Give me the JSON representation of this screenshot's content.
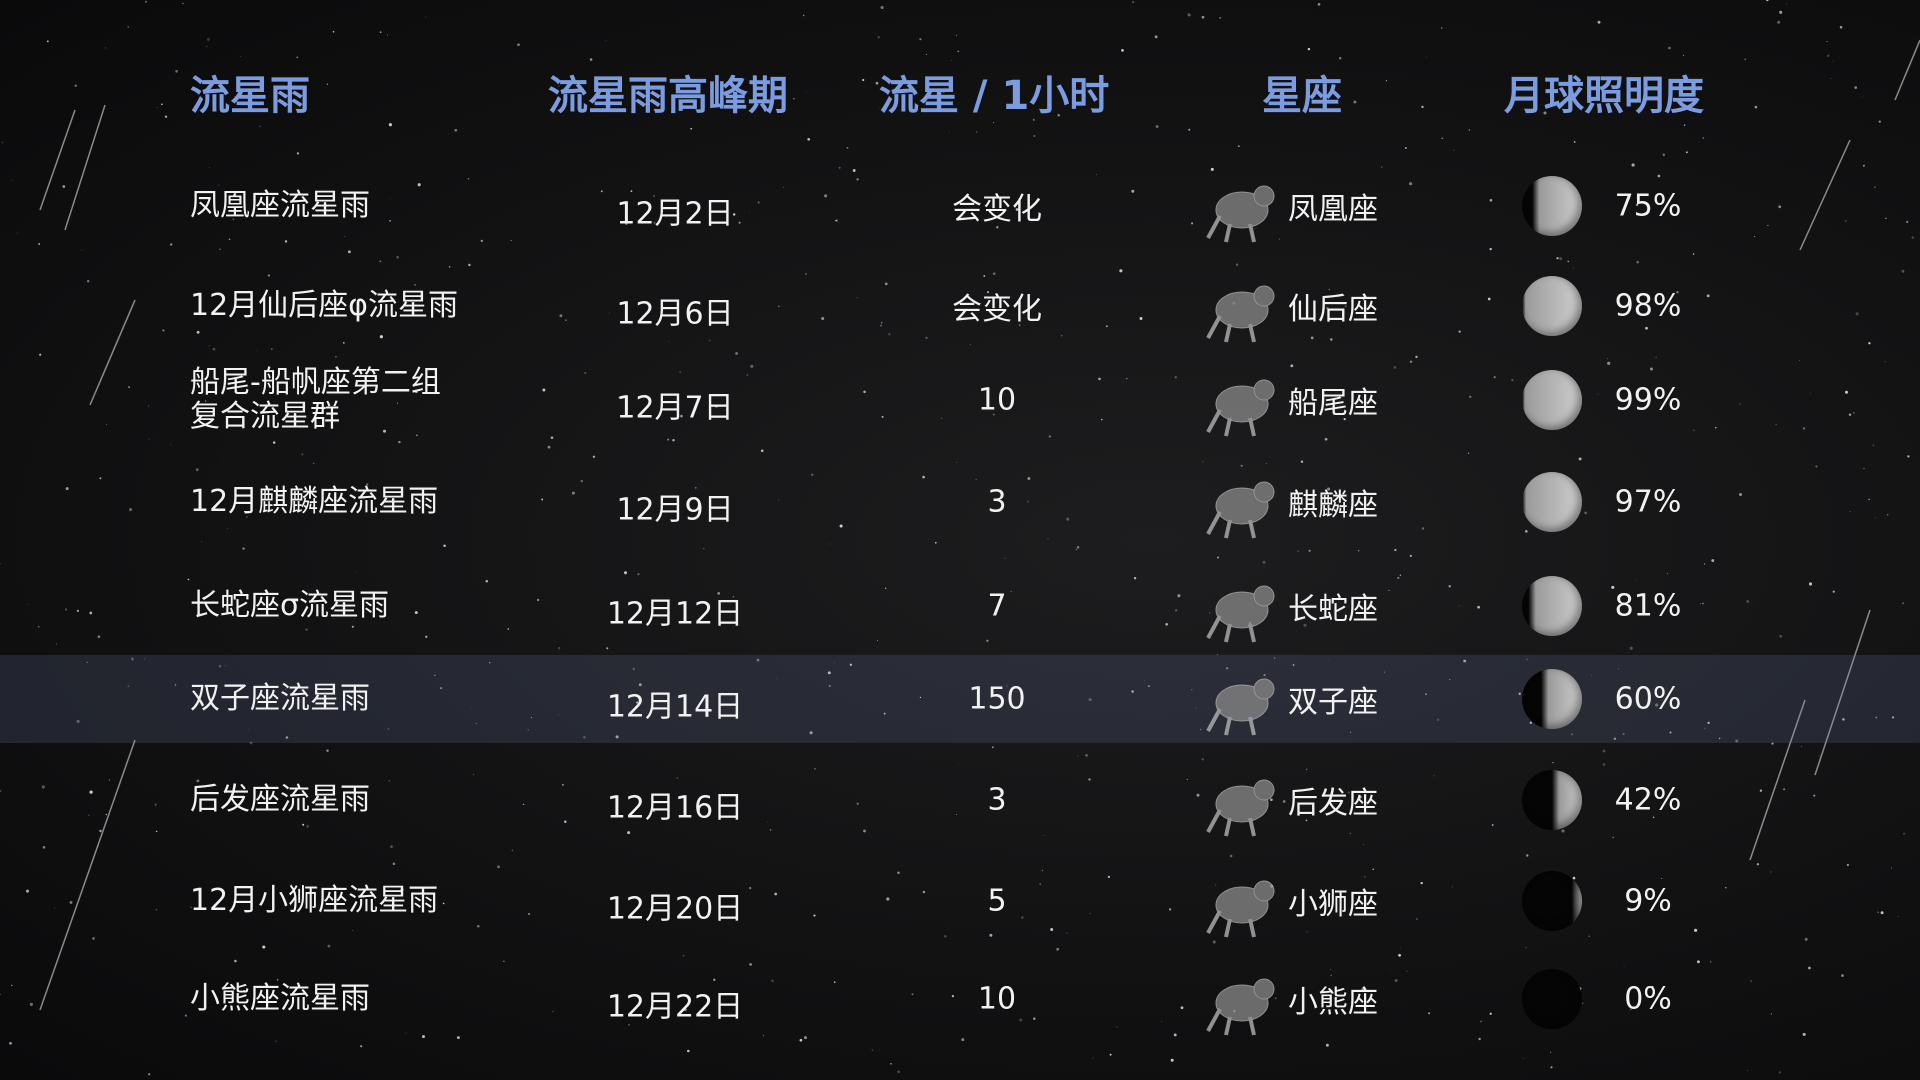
{
  "headers": {
    "shower": "流星雨",
    "peak": "流星雨高峰期",
    "rate": "流星 / 1小时",
    "constellation": "星座",
    "moon": "月球照明度"
  },
  "highlight_row": 5,
  "colors": {
    "header": "#7b9ce0",
    "text": "#f2f2f2",
    "highlight": "#2a3040"
  },
  "rows": [
    {
      "shower": "凤凰座流星雨",
      "peak": "12月2日",
      "rate": "会变化",
      "constellation": "凤凰座",
      "constellation_icon": "phoenix-figure-icon",
      "moon": "75%",
      "moon_fraction": 0.75
    },
    {
      "shower": "12月仙后座φ流星雨",
      "peak": "12月6日",
      "rate": "会变化",
      "constellation": "仙后座",
      "constellation_icon": "cassiopeia-figure-icon",
      "moon": "98%",
      "moon_fraction": 0.98
    },
    {
      "shower": "船尾-船帆座第二组\n复合流星群",
      "peak": "12月7日",
      "rate": "10",
      "constellation": "船尾座",
      "constellation_icon": "puppis-ship-icon",
      "moon": "99%",
      "moon_fraction": 0.99
    },
    {
      "shower": "12月麒麟座流星雨",
      "peak": "12月9日",
      "rate": "3",
      "constellation": "麒麟座",
      "constellation_icon": "unicorn-figure-icon",
      "moon": "97%",
      "moon_fraction": 0.97
    },
    {
      "shower": "长蛇座σ流星雨",
      "peak": "12月12日",
      "rate": "7",
      "constellation": "长蛇座",
      "constellation_icon": "hydra-serpent-icon",
      "moon": "81%",
      "moon_fraction": 0.81
    },
    {
      "shower": "双子座流星雨",
      "peak": "12月14日",
      "rate": "150",
      "constellation": "双子座",
      "constellation_icon": "gemini-twins-icon",
      "moon": "60%",
      "moon_fraction": 0.6
    },
    {
      "shower": "后发座流星雨",
      "peak": "12月16日",
      "rate": "3",
      "constellation": "后发座",
      "constellation_icon": "coma-berenices-hair-icon",
      "moon": "42%",
      "moon_fraction": 0.42
    },
    {
      "shower": "12月小狮座流星雨",
      "peak": "12月20日",
      "rate": "5",
      "constellation": "小狮座",
      "constellation_icon": "leo-minor-lion-icon",
      "moon": "9%",
      "moon_fraction": 0.09
    },
    {
      "shower": "小熊座流星雨",
      "peak": "12月22日",
      "rate": "10",
      "constellation": "小熊座",
      "constellation_icon": "ursa-minor-bear-icon",
      "moon": "0%",
      "moon_fraction": 0.0
    }
  ]
}
